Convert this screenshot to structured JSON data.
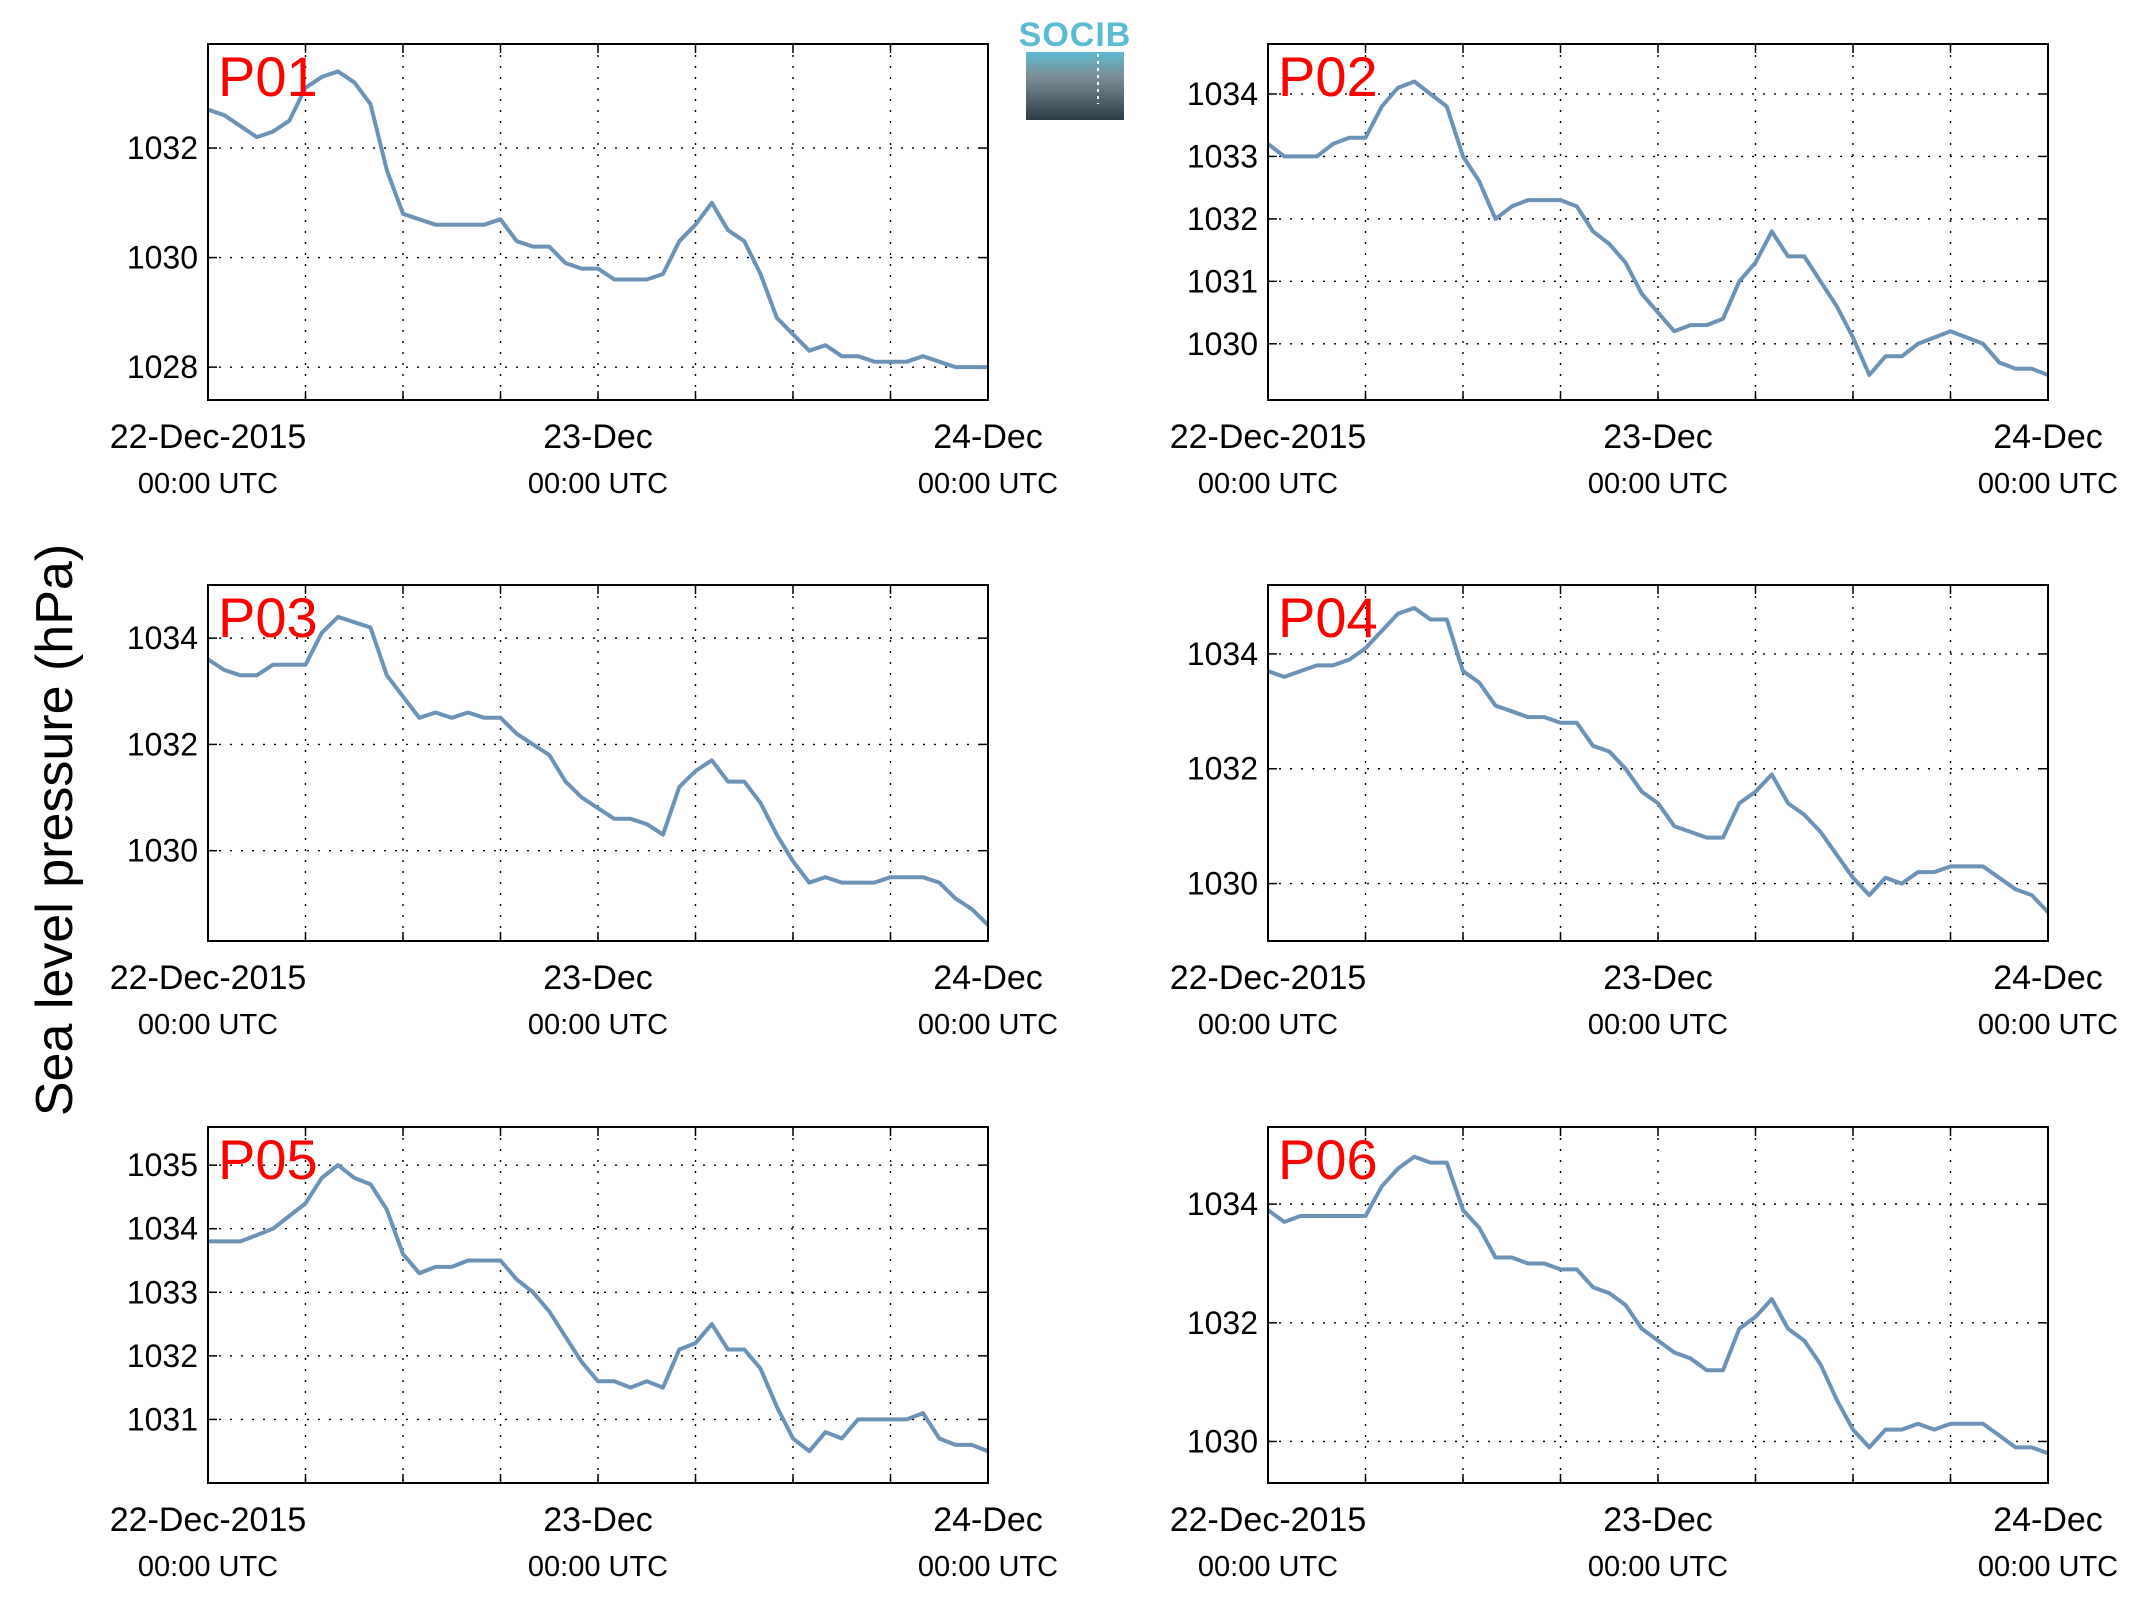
{
  "figure": {
    "ylabel": "Sea level pressure (hPa)",
    "logo_text": "SOCIB"
  },
  "colors": {
    "line": "#6a93b7",
    "panel_label": "#ff0000",
    "grid": "#000000",
    "logo_top": "#5bbbd3",
    "logo_bottom": "#2c3d47"
  },
  "chart_data": [
    {
      "type": "line",
      "panel_label": "P01",
      "xlim": [
        0,
        48
      ],
      "ylim": [
        1027.4,
        1033.9
      ],
      "yticks": [
        1028,
        1030,
        1032
      ],
      "xticks": [
        {
          "t": 0,
          "date": "22-Dec-2015",
          "time": "00:00 UTC"
        },
        {
          "t": 24,
          "date": "23-Dec",
          "time": "00:00 UTC"
        },
        {
          "t": 48,
          "date": "24-Dec",
          "time": "00:00 UTC"
        }
      ],
      "grid": true,
      "x": [
        0,
        1,
        2,
        3,
        4,
        5,
        6,
        7,
        8,
        9,
        10,
        11,
        12,
        13,
        14,
        15,
        16,
        17,
        18,
        19,
        20,
        21,
        22,
        23,
        24,
        25,
        26,
        27,
        28,
        29,
        30,
        31,
        32,
        33,
        34,
        35,
        36,
        37,
        38,
        39,
        40,
        41,
        42,
        43,
        44,
        45,
        46,
        47,
        48
      ],
      "y": [
        1032.7,
        1032.6,
        1032.4,
        1032.2,
        1032.3,
        1032.5,
        1033.1,
        1033.3,
        1033.4,
        1033.2,
        1032.8,
        1031.6,
        1030.8,
        1030.7,
        1030.6,
        1030.6,
        1030.6,
        1030.6,
        1030.7,
        1030.3,
        1030.2,
        1030.2,
        1029.9,
        1029.8,
        1029.8,
        1029.6,
        1029.6,
        1029.6,
        1029.7,
        1030.3,
        1030.6,
        1031.0,
        1030.5,
        1030.3,
        1029.7,
        1028.9,
        1028.6,
        1028.3,
        1028.4,
        1028.2,
        1028.2,
        1028.1,
        1028.1,
        1028.1,
        1028.2,
        1028.1,
        1028.0,
        1028.0,
        1028.0
      ]
    },
    {
      "type": "line",
      "panel_label": "P02",
      "xlim": [
        0,
        48
      ],
      "ylim": [
        1029.1,
        1034.8
      ],
      "yticks": [
        1030,
        1031,
        1032,
        1033,
        1034
      ],
      "xticks": [
        {
          "t": 0,
          "date": "22-Dec-2015",
          "time": "00:00 UTC"
        },
        {
          "t": 24,
          "date": "23-Dec",
          "time": "00:00 UTC"
        },
        {
          "t": 48,
          "date": "24-Dec",
          "time": "00:00 UTC"
        }
      ],
      "grid": true,
      "x": [
        0,
        1,
        2,
        3,
        4,
        5,
        6,
        7,
        8,
        9,
        10,
        11,
        12,
        13,
        14,
        15,
        16,
        17,
        18,
        19,
        20,
        21,
        22,
        23,
        24,
        25,
        26,
        27,
        28,
        29,
        30,
        31,
        32,
        33,
        34,
        35,
        36,
        37,
        38,
        39,
        40,
        41,
        42,
        43,
        44,
        45,
        46,
        47,
        48
      ],
      "y": [
        1033.2,
        1033.0,
        1033.0,
        1033.0,
        1033.2,
        1033.3,
        1033.3,
        1033.8,
        1034.1,
        1034.2,
        1034.0,
        1033.8,
        1033.0,
        1032.6,
        1032.0,
        1032.2,
        1032.3,
        1032.3,
        1032.3,
        1032.2,
        1031.8,
        1031.6,
        1031.3,
        1030.8,
        1030.5,
        1030.2,
        1030.3,
        1030.3,
        1030.4,
        1031.0,
        1031.3,
        1031.8,
        1031.4,
        1031.4,
        1031.0,
        1030.6,
        1030.1,
        1029.5,
        1029.8,
        1029.8,
        1030.0,
        1030.1,
        1030.2,
        1030.1,
        1030.0,
        1029.7,
        1029.6,
        1029.6,
        1029.5
      ]
    },
    {
      "type": "line",
      "panel_label": "P03",
      "xlim": [
        0,
        48
      ],
      "ylim": [
        1028.3,
        1035.0
      ],
      "yticks": [
        1030,
        1032,
        1034
      ],
      "xticks": [
        {
          "t": 0,
          "date": "22-Dec-2015",
          "time": "00:00 UTC"
        },
        {
          "t": 24,
          "date": "23-Dec",
          "time": "00:00 UTC"
        },
        {
          "t": 48,
          "date": "24-Dec",
          "time": "00:00 UTC"
        }
      ],
      "grid": true,
      "x": [
        0,
        1,
        2,
        3,
        4,
        5,
        6,
        7,
        8,
        9,
        10,
        11,
        12,
        13,
        14,
        15,
        16,
        17,
        18,
        19,
        20,
        21,
        22,
        23,
        24,
        25,
        26,
        27,
        28,
        29,
        30,
        31,
        32,
        33,
        34,
        35,
        36,
        37,
        38,
        39,
        40,
        41,
        42,
        43,
        44,
        45,
        46,
        47,
        48
      ],
      "y": [
        1033.6,
        1033.4,
        1033.3,
        1033.3,
        1033.5,
        1033.5,
        1033.5,
        1034.1,
        1034.4,
        1034.3,
        1034.2,
        1033.3,
        1032.9,
        1032.5,
        1032.6,
        1032.5,
        1032.6,
        1032.5,
        1032.5,
        1032.2,
        1032.0,
        1031.8,
        1031.3,
        1031.0,
        1030.8,
        1030.6,
        1030.6,
        1030.5,
        1030.3,
        1031.2,
        1031.5,
        1031.7,
        1031.3,
        1031.3,
        1030.9,
        1030.3,
        1029.8,
        1029.4,
        1029.5,
        1029.4,
        1029.4,
        1029.4,
        1029.5,
        1029.5,
        1029.5,
        1029.4,
        1029.1,
        1028.9,
        1028.6
      ]
    },
    {
      "type": "line",
      "panel_label": "P04",
      "xlim": [
        0,
        48
      ],
      "ylim": [
        1029.0,
        1035.2
      ],
      "yticks": [
        1030,
        1032,
        1034
      ],
      "xticks": [
        {
          "t": 0,
          "date": "22-Dec-2015",
          "time": "00:00 UTC"
        },
        {
          "t": 24,
          "date": "23-Dec",
          "time": "00:00 UTC"
        },
        {
          "t": 48,
          "date": "24-Dec",
          "time": "00:00 UTC"
        }
      ],
      "grid": true,
      "x": [
        0,
        1,
        2,
        3,
        4,
        5,
        6,
        7,
        8,
        9,
        10,
        11,
        12,
        13,
        14,
        15,
        16,
        17,
        18,
        19,
        20,
        21,
        22,
        23,
        24,
        25,
        26,
        27,
        28,
        29,
        30,
        31,
        32,
        33,
        34,
        35,
        36,
        37,
        38,
        39,
        40,
        41,
        42,
        43,
        44,
        45,
        46,
        47,
        48
      ],
      "y": [
        1033.7,
        1033.6,
        1033.7,
        1033.8,
        1033.8,
        1033.9,
        1034.1,
        1034.4,
        1034.7,
        1034.8,
        1034.6,
        1034.6,
        1033.7,
        1033.5,
        1033.1,
        1033.0,
        1032.9,
        1032.9,
        1032.8,
        1032.8,
        1032.4,
        1032.3,
        1032.0,
        1031.6,
        1031.4,
        1031.0,
        1030.9,
        1030.8,
        1030.8,
        1031.4,
        1031.6,
        1031.9,
        1031.4,
        1031.2,
        1030.9,
        1030.5,
        1030.1,
        1029.8,
        1030.1,
        1030.0,
        1030.2,
        1030.2,
        1030.3,
        1030.3,
        1030.3,
        1030.1,
        1029.9,
        1029.8,
        1029.5
      ]
    },
    {
      "type": "line",
      "panel_label": "P05",
      "xlim": [
        0,
        48
      ],
      "ylim": [
        1030.0,
        1035.6
      ],
      "yticks": [
        1031,
        1032,
        1033,
        1034,
        1035
      ],
      "xticks": [
        {
          "t": 0,
          "date": "22-Dec-2015",
          "time": "00:00 UTC"
        },
        {
          "t": 24,
          "date": "23-Dec",
          "time": "00:00 UTC"
        },
        {
          "t": 48,
          "date": "24-Dec",
          "time": "00:00 UTC"
        }
      ],
      "grid": true,
      "x": [
        0,
        1,
        2,
        3,
        4,
        5,
        6,
        7,
        8,
        9,
        10,
        11,
        12,
        13,
        14,
        15,
        16,
        17,
        18,
        19,
        20,
        21,
        22,
        23,
        24,
        25,
        26,
        27,
        28,
        29,
        30,
        31,
        32,
        33,
        34,
        35,
        36,
        37,
        38,
        39,
        40,
        41,
        42,
        43,
        44,
        45,
        46,
        47,
        48
      ],
      "y": [
        1033.8,
        1033.8,
        1033.8,
        1033.9,
        1034.0,
        1034.2,
        1034.4,
        1034.8,
        1035.0,
        1034.8,
        1034.7,
        1034.3,
        1033.6,
        1033.3,
        1033.4,
        1033.4,
        1033.5,
        1033.5,
        1033.5,
        1033.2,
        1033.0,
        1032.7,
        1032.3,
        1031.9,
        1031.6,
        1031.6,
        1031.5,
        1031.6,
        1031.5,
        1032.1,
        1032.2,
        1032.5,
        1032.1,
        1032.1,
        1031.8,
        1031.2,
        1030.7,
        1030.5,
        1030.8,
        1030.7,
        1031.0,
        1031.0,
        1031.0,
        1031.0,
        1031.1,
        1030.7,
        1030.6,
        1030.6,
        1030.5
      ]
    },
    {
      "type": "line",
      "panel_label": "P06",
      "xlim": [
        0,
        48
      ],
      "ylim": [
        1029.3,
        1035.3
      ],
      "yticks": [
        1030,
        1032,
        1034
      ],
      "xticks": [
        {
          "t": 0,
          "date": "22-Dec-2015",
          "time": "00:00 UTC"
        },
        {
          "t": 24,
          "date": "23-Dec",
          "time": "00:00 UTC"
        },
        {
          "t": 48,
          "date": "24-Dec",
          "time": "00:00 UTC"
        }
      ],
      "grid": true,
      "x": [
        0,
        1,
        2,
        3,
        4,
        5,
        6,
        7,
        8,
        9,
        10,
        11,
        12,
        13,
        14,
        15,
        16,
        17,
        18,
        19,
        20,
        21,
        22,
        23,
        24,
        25,
        26,
        27,
        28,
        29,
        30,
        31,
        32,
        33,
        34,
        35,
        36,
        37,
        38,
        39,
        40,
        41,
        42,
        43,
        44,
        45,
        46,
        47,
        48
      ],
      "y": [
        1033.9,
        1033.7,
        1033.8,
        1033.8,
        1033.8,
        1033.8,
        1033.8,
        1034.3,
        1034.6,
        1034.8,
        1034.7,
        1034.7,
        1033.9,
        1033.6,
        1033.1,
        1033.1,
        1033.0,
        1033.0,
        1032.9,
        1032.9,
        1032.6,
        1032.5,
        1032.3,
        1031.9,
        1031.7,
        1031.5,
        1031.4,
        1031.2,
        1031.2,
        1031.9,
        1032.1,
        1032.4,
        1031.9,
        1031.7,
        1031.3,
        1030.7,
        1030.2,
        1029.9,
        1030.2,
        1030.2,
        1030.3,
        1030.2,
        1030.3,
        1030.3,
        1030.3,
        1030.1,
        1029.9,
        1029.9,
        1029.8
      ]
    }
  ]
}
